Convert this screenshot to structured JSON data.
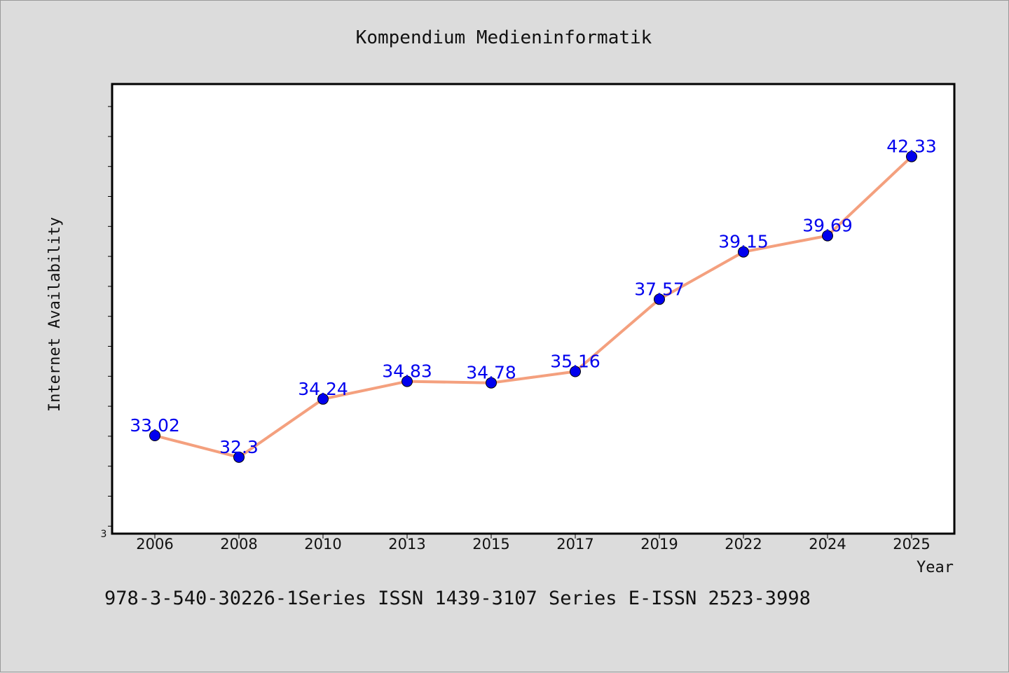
{
  "chart_data": {
    "type": "line",
    "title": "Kompendium Medieninformatik",
    "xlabel": "Year",
    "ylabel": "Internet Availability",
    "y_min_label": "3",
    "categories": [
      "2006",
      "2008",
      "2010",
      "2013",
      "2015",
      "2017",
      "2019",
      "2022",
      "2024",
      "2025"
    ],
    "values": [
      33.02,
      32.3,
      34.24,
      34.83,
      34.78,
      35.16,
      37.57,
      39.15,
      39.69,
      42.33
    ],
    "data_labels": [
      "33.02",
      "32.3",
      "34.24",
      "34.83",
      "34.78",
      "35.16",
      "37.57",
      "39.15",
      "39.69",
      "42.33"
    ],
    "ylim": [
      29.75,
      44.75
    ],
    "y_minor_step": 1,
    "grid": false,
    "line_color": "#f4a07e",
    "marker_color": "#0000ee",
    "label_color": "#0000ee"
  },
  "footer_text": "978-3-540-30226-1Series ISSN 1439-3107 Series E-ISSN 2523-3998"
}
